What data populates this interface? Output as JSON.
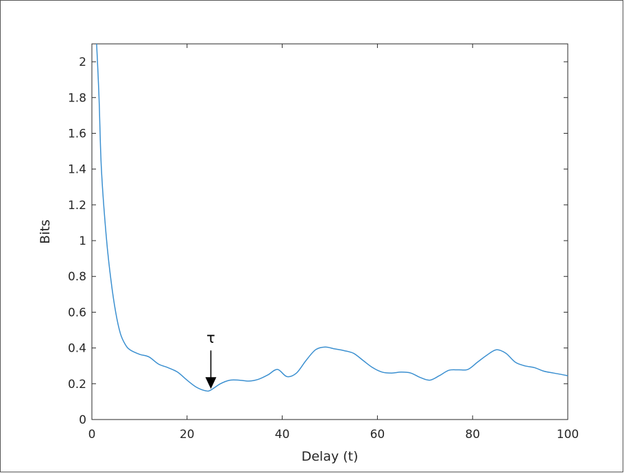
{
  "chart_data": {
    "type": "line",
    "title": "",
    "xlabel": "Delay (t)",
    "ylabel": "Bits",
    "xlim": [
      0,
      100
    ],
    "ylim": [
      0,
      2.1
    ],
    "xticks": [
      0,
      20,
      40,
      60,
      80,
      100
    ],
    "yticks": [
      0,
      0.2,
      0.4,
      0.6,
      0.8,
      1,
      1.2,
      1.4,
      1.6,
      1.8,
      2
    ],
    "grid": false,
    "line_color": "#3a8fd0",
    "series": [
      {
        "x": [
          1,
          1.5,
          2,
          3,
          4,
          5,
          6,
          7,
          8,
          10,
          12,
          14,
          16,
          18,
          20,
          22,
          24,
          25,
          27,
          29,
          31,
          33,
          35,
          37,
          39,
          41,
          43,
          45,
          47,
          49,
          51,
          53,
          55,
          57,
          59,
          61,
          63,
          65,
          67,
          69,
          71,
          73,
          75,
          77,
          79,
          81,
          83,
          85,
          87,
          89,
          91,
          93,
          95,
          97,
          100
        ],
        "y": [
          2.1,
          1.8,
          1.4,
          1.03,
          0.78,
          0.6,
          0.48,
          0.42,
          0.39,
          0.365,
          0.35,
          0.31,
          0.29,
          0.265,
          0.22,
          0.18,
          0.16,
          0.165,
          0.2,
          0.22,
          0.22,
          0.215,
          0.225,
          0.25,
          0.28,
          0.24,
          0.26,
          0.33,
          0.39,
          0.405,
          0.395,
          0.385,
          0.37,
          0.33,
          0.29,
          0.265,
          0.26,
          0.265,
          0.26,
          0.235,
          0.22,
          0.245,
          0.275,
          0.278,
          0.28,
          0.32,
          0.36,
          0.39,
          0.37,
          0.32,
          0.3,
          0.29,
          0.27,
          0.26,
          0.245
        ]
      }
    ],
    "annotations": [
      {
        "text": "τ",
        "x": 25,
        "y": 0.16
      }
    ]
  }
}
